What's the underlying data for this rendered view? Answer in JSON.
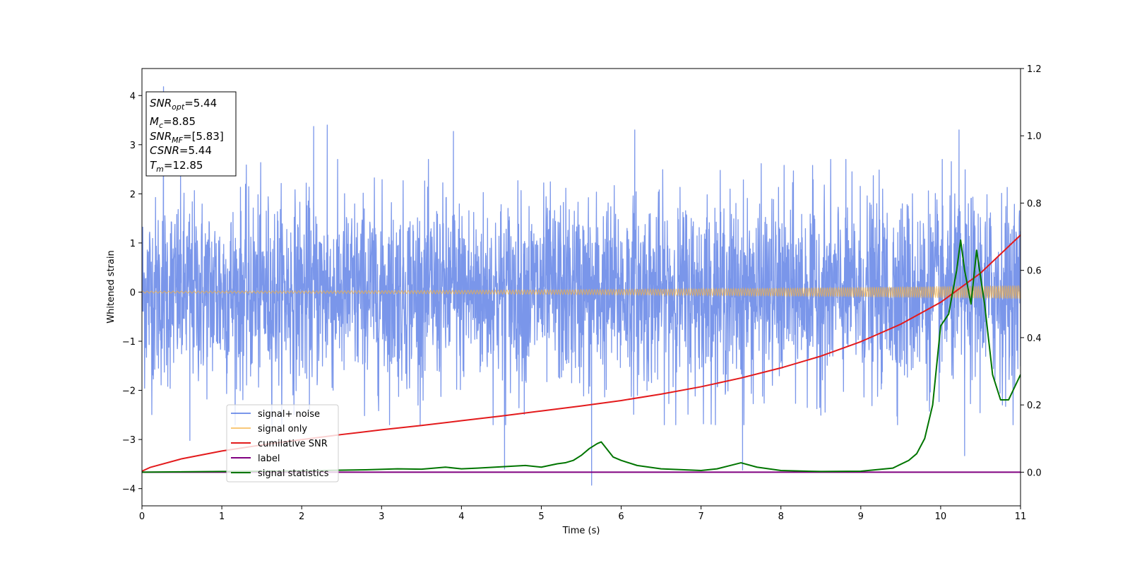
{
  "chart_data": {
    "type": "line",
    "xlabel": "Time (s)",
    "ylabel": "Whitened strain",
    "xlim": [
      0,
      11
    ],
    "ylim": [
      -4.35,
      4.55
    ],
    "y2lim": [
      -0.1,
      1.2
    ],
    "x_ticks": [
      "0",
      "1",
      "2",
      "3",
      "4",
      "5",
      "6",
      "7",
      "8",
      "9",
      "10",
      "11"
    ],
    "y_ticks": [
      "-4",
      "-3",
      "-2",
      "-1",
      "0",
      "1",
      "2",
      "3",
      "4"
    ],
    "y2_ticks": [
      "0.0",
      "0.2",
      "0.4",
      "0.6",
      "0.8",
      "1.0",
      "1.2"
    ],
    "grid": false,
    "legend_position": "lower-left",
    "info_box": {
      "snr_opt": {
        "sym": "SNR",
        "sub": "opt",
        "val": "=5.44"
      },
      "mc": {
        "sym": "M",
        "sub": "c",
        "val": "=8.85"
      },
      "snr_mf": {
        "sym": "SNR",
        "sub": "MF",
        "val": "=[5.83]"
      },
      "csnr": {
        "sym": "CSNR",
        "sub": "",
        "val": "=5.44"
      },
      "tm": {
        "sym": "T",
        "sub": "m",
        "val": "=12.85"
      }
    },
    "series": [
      {
        "name": "signal+ noise",
        "color": "#4169e1",
        "axis": "left",
        "description_kind": "noise",
        "noise_envelope": [
          -2.0,
          2.0
        ],
        "extreme_points": [
          {
            "x": 0.27,
            "y": 4.18
          },
          {
            "x": 2.15,
            "y": 3.37
          },
          {
            "x": 2.32,
            "y": 3.4
          },
          {
            "x": 3.9,
            "y": 3.27
          },
          {
            "x": 6.17,
            "y": 3.3
          },
          {
            "x": 10.23,
            "y": 3.3
          },
          {
            "x": 5.63,
            "y": -3.93
          },
          {
            "x": 4.54,
            "y": -3.6
          },
          {
            "x": 7.52,
            "y": -3.62
          },
          {
            "x": 10.3,
            "y": -3.33
          },
          {
            "x": 0.6,
            "y": -3.02
          }
        ]
      },
      {
        "name": "signal only",
        "color": "#f5b041",
        "axis": "left",
        "amplitude_start": 0.02,
        "amplitude_end": 0.14,
        "freq_start": 18,
        "freq_end": 40
      },
      {
        "name": "cumilative SNR",
        "color": "#e31a1c",
        "axis": "right",
        "x": [
          0,
          0.1,
          0.5,
          1,
          1.5,
          2,
          2.5,
          3,
          3.5,
          4,
          4.5,
          5,
          5.5,
          6,
          6.5,
          7,
          7.5,
          8,
          8.5,
          9,
          9.5,
          10,
          10.5,
          11
        ],
        "y": [
          0.003,
          0.014,
          0.04,
          0.063,
          0.081,
          0.097,
          0.112,
          0.126,
          0.139,
          0.153,
          0.167,
          0.182,
          0.197,
          0.213,
          0.232,
          0.254,
          0.28,
          0.31,
          0.345,
          0.388,
          0.44,
          0.505,
          0.592,
          0.705
        ]
      },
      {
        "name": "label",
        "color": "#800080",
        "axis": "right",
        "x": [
          0,
          11
        ],
        "y": [
          0.0,
          0.0
        ]
      },
      {
        "name": "signal statistics",
        "color": "#007500",
        "axis": "right",
        "x": [
          0,
          0.5,
          1.0,
          1.5,
          2.0,
          2.5,
          2.8,
          3.2,
          3.5,
          3.8,
          4.0,
          4.2,
          4.5,
          4.8,
          5.0,
          5.2,
          5.3,
          5.4,
          5.5,
          5.6,
          5.7,
          5.75,
          5.8,
          5.9,
          6.0,
          6.2,
          6.5,
          7.0,
          7.2,
          7.4,
          7.5,
          7.7,
          8.0,
          8.5,
          9.0,
          9.4,
          9.6,
          9.7,
          9.8,
          9.9,
          10.0,
          10.1,
          10.2,
          10.25,
          10.3,
          10.38,
          10.45,
          10.55,
          10.65,
          10.75,
          10.85,
          11.0
        ],
        "y": [
          0.0,
          0.001,
          0.002,
          0.003,
          0.004,
          0.006,
          0.007,
          0.01,
          0.009,
          0.015,
          0.01,
          0.012,
          0.016,
          0.02,
          0.015,
          0.025,
          0.028,
          0.035,
          0.05,
          0.07,
          0.085,
          0.09,
          0.075,
          0.045,
          0.035,
          0.02,
          0.01,
          0.005,
          0.01,
          0.022,
          0.028,
          0.015,
          0.005,
          0.002,
          0.003,
          0.012,
          0.035,
          0.055,
          0.1,
          0.2,
          0.435,
          0.47,
          0.6,
          0.69,
          0.6,
          0.5,
          0.66,
          0.5,
          0.29,
          0.215,
          0.215,
          0.29
        ]
      }
    ]
  }
}
